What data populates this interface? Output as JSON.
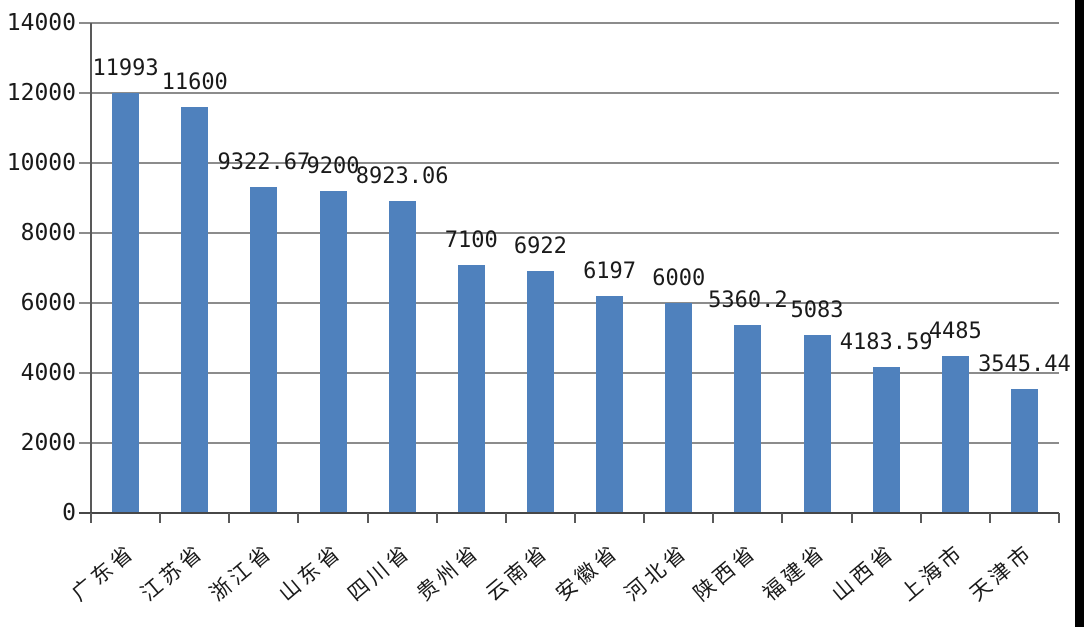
{
  "chart_data": {
    "type": "bar",
    "title": "",
    "xlabel": "",
    "ylabel": "",
    "categories": [
      "广东省",
      "江苏省",
      "浙江省",
      "山东省",
      "四川省",
      "贵州省",
      "云南省",
      "安徽省",
      "河北省",
      "陕西省",
      "福建省",
      "山西省",
      "上海市",
      "天津市"
    ],
    "values": [
      11993,
      11600,
      9322.67,
      9200,
      8923.06,
      7100,
      6922,
      6197,
      6000,
      5360.2,
      5083,
      4183.59,
      4485,
      3545.44
    ],
    "value_labels": [
      "11993",
      "11600",
      "9322.67",
      "9200",
      "8923.06",
      "7100",
      "6922",
      "6197",
      "6000",
      "5360.2",
      "5083",
      "4183.59",
      "4485",
      "3545.44"
    ],
    "y_ticks": [
      "0",
      "2000",
      "4000",
      "6000",
      "8000",
      "10000",
      "12000",
      "14000"
    ],
    "ylim": [
      0,
      14000
    ],
    "grid": true,
    "legend_position": "none",
    "colors": {
      "bar": "#4f81bd",
      "gridline": "#8c8c8c",
      "baseline": "#474747",
      "axis": "#595959",
      "text": "#1a1a1a",
      "background": "#ffffff",
      "image_right_border": "#000000"
    }
  }
}
